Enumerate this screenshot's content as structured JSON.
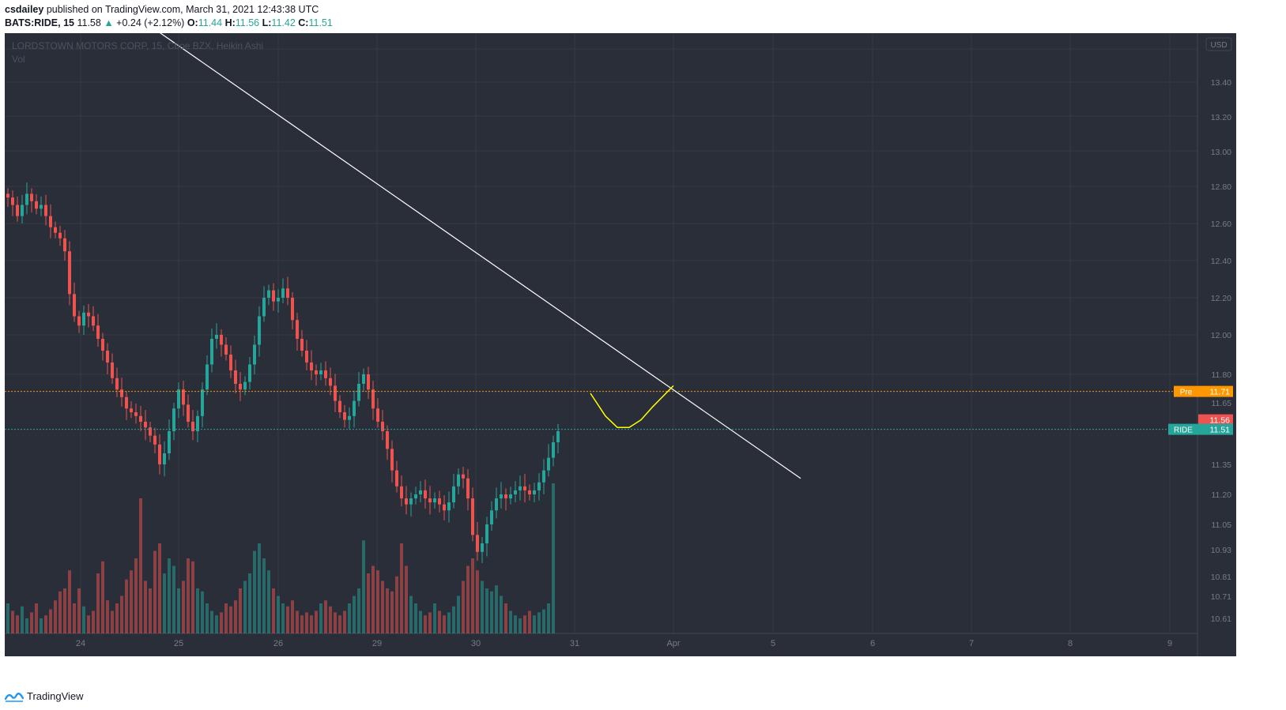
{
  "header": {
    "author": "csdailey",
    "published": "published on TradingView.com, March 31, 2021 12:43:38 UTC",
    "symbol": "BATS:RIDE, 15",
    "last": "11.58",
    "change": "+0.24 (+2.12%)",
    "o_label": "O:",
    "o": "11.44",
    "h_label": "H:",
    "h": "11.56",
    "l_label": "L:",
    "l": "11.42",
    "c_label": "C:",
    "c": "11.51"
  },
  "legend": {
    "title": "LORDSTOWN MOTORS CORP, 15, Cboe BZX, Heikin Ashi",
    "vol": "Vol"
  },
  "footer": {
    "brand": "TradingView",
    "logo_icon": "tradingview-logo-icon"
  },
  "colors": {
    "background": "#2a2e39",
    "grid": "#363a45",
    "up": "#26a69a",
    "down": "#ef5350",
    "trendline": "#ffffff",
    "sketch": "#ffff00",
    "pre_line": "#ff9800",
    "ride_line": "#26a69a"
  },
  "chart_data": {
    "type": "candlestick",
    "style": "Heikin Ashi",
    "currency": "USD",
    "x_labels": [
      "24",
      "25",
      "26",
      "29",
      "30",
      "31",
      "Apr",
      "5",
      "6",
      "7",
      "8",
      "9"
    ],
    "y_ticks": [
      "13.40",
      "13.20",
      "13.00",
      "12.80",
      "12.60",
      "12.40",
      "12.20",
      "12.00",
      "11.80",
      "11.65",
      "11.50",
      "11.35",
      "11.20",
      "11.05",
      "10.93",
      "10.81",
      "10.71",
      "10.61"
    ],
    "price_labels": [
      {
        "text": "Pre",
        "value": "11.71",
        "price": 11.71,
        "color": "#ff9800"
      },
      {
        "text": "",
        "value": "11.56",
        "price": 11.56,
        "color": "#ef5350"
      },
      {
        "text": "RIDE",
        "value": "11.51",
        "price": 11.51,
        "color": "#26a69a"
      }
    ],
    "ohlc_path": [
      [
        0,
        12.74
      ],
      [
        6,
        12.7
      ],
      [
        12,
        12.64
      ],
      [
        20,
        12.7
      ],
      [
        28,
        12.76
      ],
      [
        36,
        12.72
      ],
      [
        44,
        12.68
      ],
      [
        52,
        12.7
      ],
      [
        58,
        12.64
      ],
      [
        66,
        12.58
      ],
      [
        74,
        12.55
      ],
      [
        82,
        12.52
      ],
      [
        90,
        12.45
      ],
      [
        96,
        12.22
      ],
      [
        102,
        12.1
      ],
      [
        108,
        12.05
      ],
      [
        114,
        12.12
      ],
      [
        120,
        12.1
      ],
      [
        126,
        12.05
      ],
      [
        132,
        11.98
      ],
      [
        138,
        11.92
      ],
      [
        144,
        11.86
      ],
      [
        150,
        11.78
      ],
      [
        156,
        11.72
      ],
      [
        162,
        11.68
      ],
      [
        168,
        11.62
      ],
      [
        174,
        11.6
      ],
      [
        180,
        11.58
      ],
      [
        186,
        11.55
      ],
      [
        192,
        11.52
      ],
      [
        198,
        11.48
      ],
      [
        204,
        11.44
      ],
      [
        210,
        11.35
      ],
      [
        216,
        11.4
      ],
      [
        222,
        11.5
      ],
      [
        228,
        11.62
      ],
      [
        234,
        11.72
      ],
      [
        240,
        11.64
      ],
      [
        246,
        11.55
      ],
      [
        252,
        11.5
      ],
      [
        258,
        11.58
      ],
      [
        264,
        11.72
      ],
      [
        270,
        11.85
      ],
      [
        276,
        11.98
      ],
      [
        282,
        12.0
      ],
      [
        288,
        11.95
      ],
      [
        294,
        11.9
      ],
      [
        300,
        11.82
      ],
      [
        306,
        11.75
      ],
      [
        312,
        11.72
      ],
      [
        318,
        11.76
      ],
      [
        324,
        11.85
      ],
      [
        330,
        11.95
      ],
      [
        336,
        12.1
      ],
      [
        342,
        12.2
      ],
      [
        348,
        12.24
      ],
      [
        354,
        12.18
      ],
      [
        360,
        12.2
      ],
      [
        366,
        12.25
      ],
      [
        372,
        12.2
      ],
      [
        378,
        12.08
      ],
      [
        384,
        11.98
      ],
      [
        390,
        11.92
      ],
      [
        396,
        11.86
      ],
      [
        402,
        11.82
      ],
      [
        408,
        11.8
      ],
      [
        414,
        11.82
      ],
      [
        420,
        11.78
      ],
      [
        426,
        11.74
      ],
      [
        432,
        11.66
      ],
      [
        438,
        11.6
      ],
      [
        444,
        11.56
      ],
      [
        450,
        11.58
      ],
      [
        456,
        11.66
      ],
      [
        462,
        11.75
      ],
      [
        468,
        11.8
      ],
      [
        474,
        11.72
      ],
      [
        480,
        11.62
      ],
      [
        486,
        11.55
      ],
      [
        492,
        11.5
      ],
      [
        498,
        11.42
      ],
      [
        504,
        11.32
      ],
      [
        510,
        11.24
      ],
      [
        516,
        11.18
      ],
      [
        522,
        11.15
      ],
      [
        528,
        11.18
      ],
      [
        534,
        11.2
      ],
      [
        540,
        11.22
      ],
      [
        546,
        11.18
      ],
      [
        552,
        11.16
      ],
      [
        558,
        11.18
      ],
      [
        564,
        11.15
      ],
      [
        570,
        11.12
      ],
      [
        576,
        11.16
      ],
      [
        582,
        11.24
      ],
      [
        588,
        11.3
      ],
      [
        594,
        11.28
      ],
      [
        600,
        11.18
      ],
      [
        606,
        11.0
      ],
      [
        612,
        10.92
      ],
      [
        618,
        10.96
      ],
      [
        624,
        11.05
      ],
      [
        630,
        11.12
      ],
      [
        636,
        11.18
      ],
      [
        642,
        11.2
      ],
      [
        648,
        11.18
      ],
      [
        654,
        11.2
      ],
      [
        660,
        11.22
      ],
      [
        666,
        11.24
      ],
      [
        672,
        11.22
      ],
      [
        678,
        11.2
      ],
      [
        684,
        11.22
      ],
      [
        690,
        11.26
      ],
      [
        696,
        11.32
      ],
      [
        702,
        11.38
      ],
      [
        708,
        11.45
      ],
      [
        714,
        11.5
      ]
    ],
    "volume_heights_frac": [
      0.2,
      0.15,
      0.12,
      0.18,
      0.1,
      0.14,
      0.2,
      0.1,
      0.12,
      0.16,
      0.22,
      0.28,
      0.3,
      0.42,
      0.2,
      0.3,
      0.18,
      0.12,
      0.15,
      0.4,
      0.48,
      0.22,
      0.15,
      0.2,
      0.25,
      0.36,
      0.42,
      0.5,
      0.9,
      0.35,
      0.3,
      0.55,
      0.6,
      0.4,
      0.5,
      0.45,
      0.3,
      0.35,
      0.5,
      0.48,
      0.3,
      0.28,
      0.2,
      0.15,
      0.12,
      0.14,
      0.2,
      0.18,
      0.22,
      0.3,
      0.35,
      0.4,
      0.55,
      0.6,
      0.5,
      0.42,
      0.3,
      0.25,
      0.2,
      0.18,
      0.22,
      0.15,
      0.12,
      0.14,
      0.12,
      0.15,
      0.2,
      0.22,
      0.18,
      0.14,
      0.12,
      0.15,
      0.2,
      0.25,
      0.3,
      0.62,
      0.4,
      0.45,
      0.42,
      0.35,
      0.3,
      0.28,
      0.38,
      0.6,
      0.45,
      0.25,
      0.2,
      0.15,
      0.12,
      0.14,
      0.2,
      0.15,
      0.12,
      0.14,
      0.18,
      0.25,
      0.35,
      0.45,
      0.5,
      0.42,
      0.35,
      0.3,
      0.28,
      0.32,
      0.25,
      0.2,
      0.15,
      0.12,
      0.1,
      0.12,
      0.15,
      0.12,
      0.14,
      0.16,
      0.2,
      1.0
    ],
    "trendline": [
      [
        185,
        13.72
      ],
      [
        1007,
        11.28
      ]
    ],
    "sketch_curve": [
      [
        741,
        11.7
      ],
      [
        760,
        11.58
      ],
      [
        775,
        11.52
      ],
      [
        790,
        11.52
      ],
      [
        805,
        11.56
      ],
      [
        820,
        11.63
      ],
      [
        846,
        11.74
      ]
    ]
  }
}
